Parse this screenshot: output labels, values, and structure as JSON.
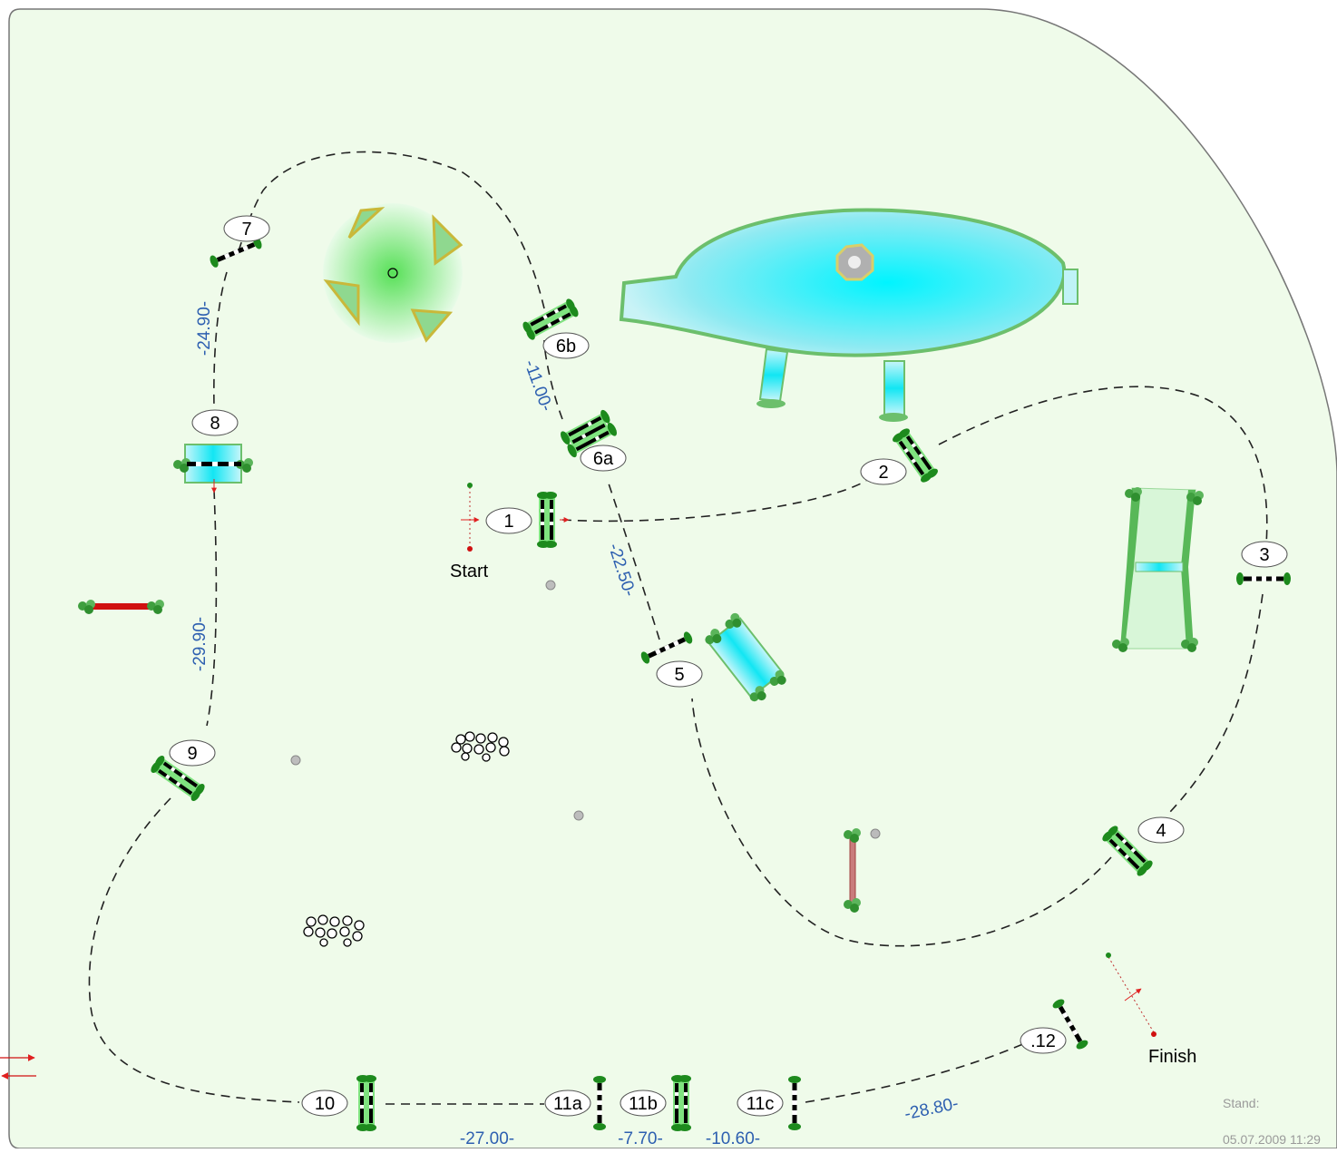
{
  "course": {
    "start_label": "Start",
    "finish_label": "Finish",
    "stand_label": "Stand:",
    "timestamp": "05.07.2009 11:29",
    "colors": {
      "arena": "#effbea",
      "border": "#777777",
      "water": "#19e6f0",
      "pole_red": "#d01010",
      "distance_text": "#2d5fb0",
      "leaf_green": "#2f8f2f"
    }
  },
  "obstacles": {
    "o1": "1",
    "o2": "2",
    "o3": "3",
    "o4": "4",
    "o5": "5",
    "o6a": "6a",
    "o6b": "6b",
    "o7": "7",
    "o8": "8",
    "o9": "9",
    "o10": "10",
    "o11a": "11a",
    "o11b": "11b",
    "o11c": "11c",
    "o12": ".12"
  },
  "distances": {
    "d7_8": "-24.90-",
    "d6b_6a": "-11.00-",
    "d6a_5": "-22.50-",
    "d8_9": "-29.90-",
    "d10_11a": "-27.00-",
    "d11a_11b": "-7.70-",
    "d11b_11c": "-10.60-",
    "d11c_12": "-28.80-"
  }
}
